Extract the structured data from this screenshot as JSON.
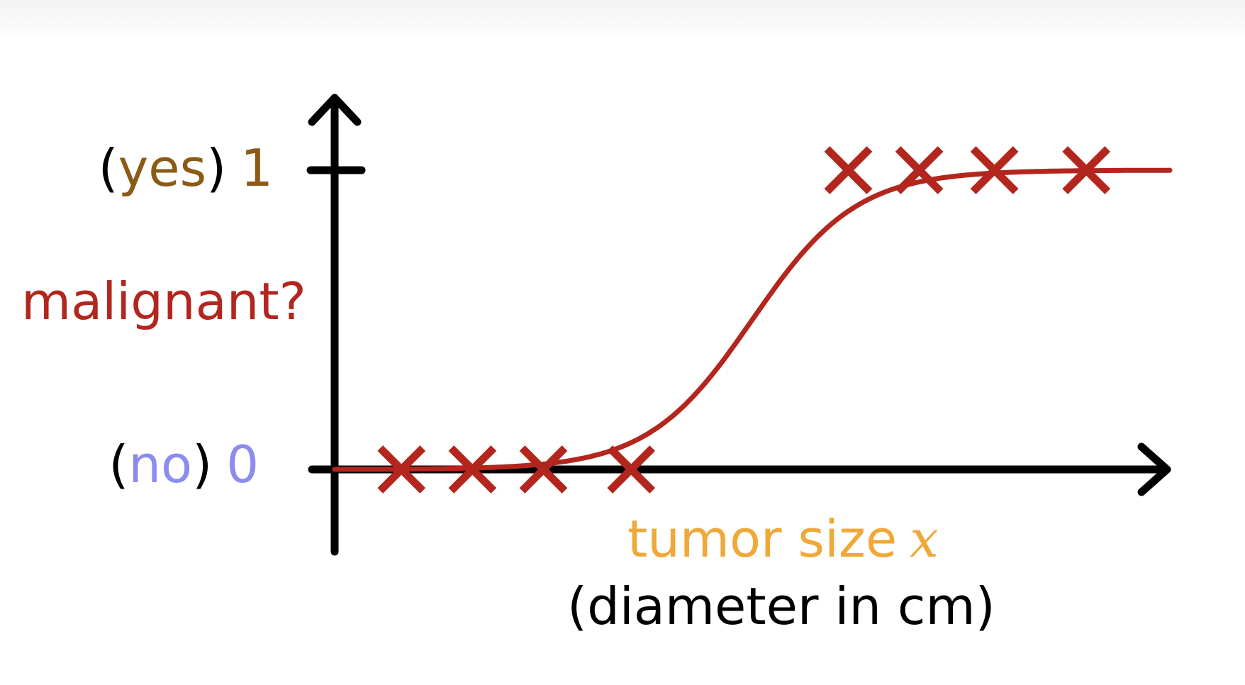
{
  "colors": {
    "axis": "#000000",
    "curve": "#b3261e",
    "marker": "#b3261e",
    "yes_text": "#8a5a16",
    "no_text": "#8c8cf0",
    "y_title": "#b3261e",
    "x_title": "#f0a838"
  },
  "chart_data": {
    "type": "scatter",
    "y_tick_labels": [
      {
        "value": 1,
        "paren_open": "(",
        "word": "yes",
        "paren_close": ")",
        "number": "1"
      },
      {
        "value": 0,
        "paren_open": "(",
        "word": "no",
        "paren_close": ")",
        "number": "0"
      }
    ],
    "ylabel": "malignant?",
    "xlabel_main": "tumor size",
    "xlabel_var": "x",
    "xlabel_sub": "(diameter in cm)",
    "ylim": [
      0,
      1
    ],
    "xlim": [
      0,
      10
    ],
    "points": [
      {
        "x": 0.8,
        "y": 0
      },
      {
        "x": 1.65,
        "y": 0
      },
      {
        "x": 2.5,
        "y": 0
      },
      {
        "x": 3.55,
        "y": 0
      },
      {
        "x": 6.15,
        "y": 1
      },
      {
        "x": 7.0,
        "y": 1
      },
      {
        "x": 7.9,
        "y": 1
      },
      {
        "x": 9.0,
        "y": 1
      }
    ],
    "curve": {
      "type": "sigmoid",
      "midpoint": 5.0,
      "steepness": 1.6
    }
  }
}
